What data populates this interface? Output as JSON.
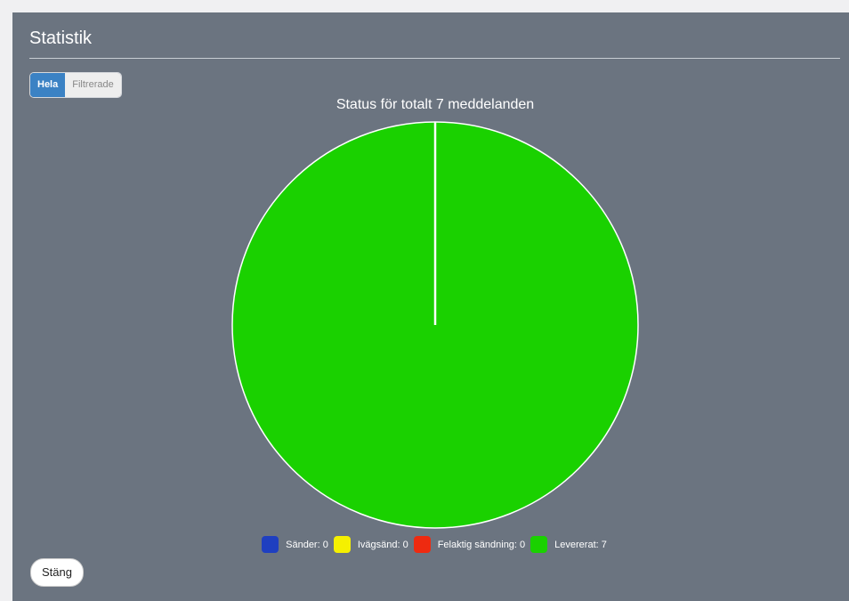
{
  "dialog": {
    "title": "Statistik",
    "close_label": "Stäng"
  },
  "segment": {
    "all_label": "Hela",
    "filtered_label": "Filtrerade",
    "selected": "Hela"
  },
  "colors": {
    "panel_bg": "#6b7480",
    "active_tab": "#3b82c4"
  },
  "chart_data": {
    "type": "pie",
    "title": "Status för totalt 7 meddelanden",
    "total": 7,
    "legend_position": "bottom",
    "slices": [
      {
        "name": "Sänder",
        "value": 0,
        "color": "#1f3fc0",
        "label": "Sänder: 0"
      },
      {
        "name": "Ivägsänd",
        "value": 0,
        "color": "#f5f000",
        "label": "Ivägsänd: 0"
      },
      {
        "name": "Felaktig sändning",
        "value": 0,
        "color": "#ee2a10",
        "label": "Felaktig sändning: 0"
      },
      {
        "name": "Levererat",
        "value": 7,
        "color": "#1ad100",
        "label": "Levererat: 7"
      }
    ]
  }
}
